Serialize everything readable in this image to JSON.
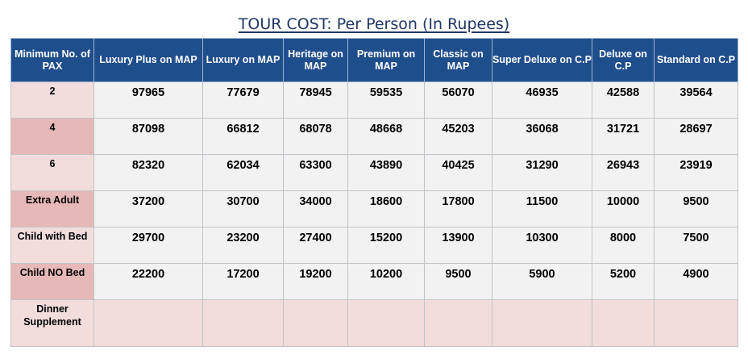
{
  "title": "TOUR COST: Per Person (In Rupees)",
  "columns": [
    "Minimum No. of PAX",
    "Luxury Plus on MAP",
    "Luxury on MAP",
    "Heritage on MAP",
    "Premium on MAP",
    "Classic on MAP",
    "Super Deluxe on C.P",
    "Deluxe on C.P",
    "Standard on C.P"
  ],
  "rows": [
    {
      "label": "2",
      "values": [
        "97965",
        "77679",
        "78945",
        "59535",
        "56070",
        "46935",
        "42588",
        "39564"
      ]
    },
    {
      "label": "4",
      "values": [
        "87098",
        "66812",
        "68078",
        "48668",
        "45203",
        "36068",
        "31721",
        "28697"
      ]
    },
    {
      "label": "6",
      "values": [
        "82320",
        "62034",
        "63300",
        "43890",
        "40425",
        "31290",
        "26943",
        "23919"
      ]
    },
    {
      "label": "Extra Adult",
      "values": [
        "37200",
        "30700",
        "34000",
        "18600",
        "17800",
        "11500",
        "10000",
        "9500"
      ]
    },
    {
      "label": "Child with Bed",
      "values": [
        "29700",
        "23200",
        "27400",
        "15200",
        "13900",
        "10300",
        "8000",
        "7500"
      ]
    },
    {
      "label": "Child NO Bed",
      "values": [
        "22200",
        "17200",
        "19200",
        "10200",
        "9500",
        "5900",
        "5200",
        "4900"
      ]
    },
    {
      "label": "Dinner Supplement",
      "values": [
        "",
        "",
        "",
        "",
        "",
        "",
        "",
        ""
      ]
    }
  ]
}
